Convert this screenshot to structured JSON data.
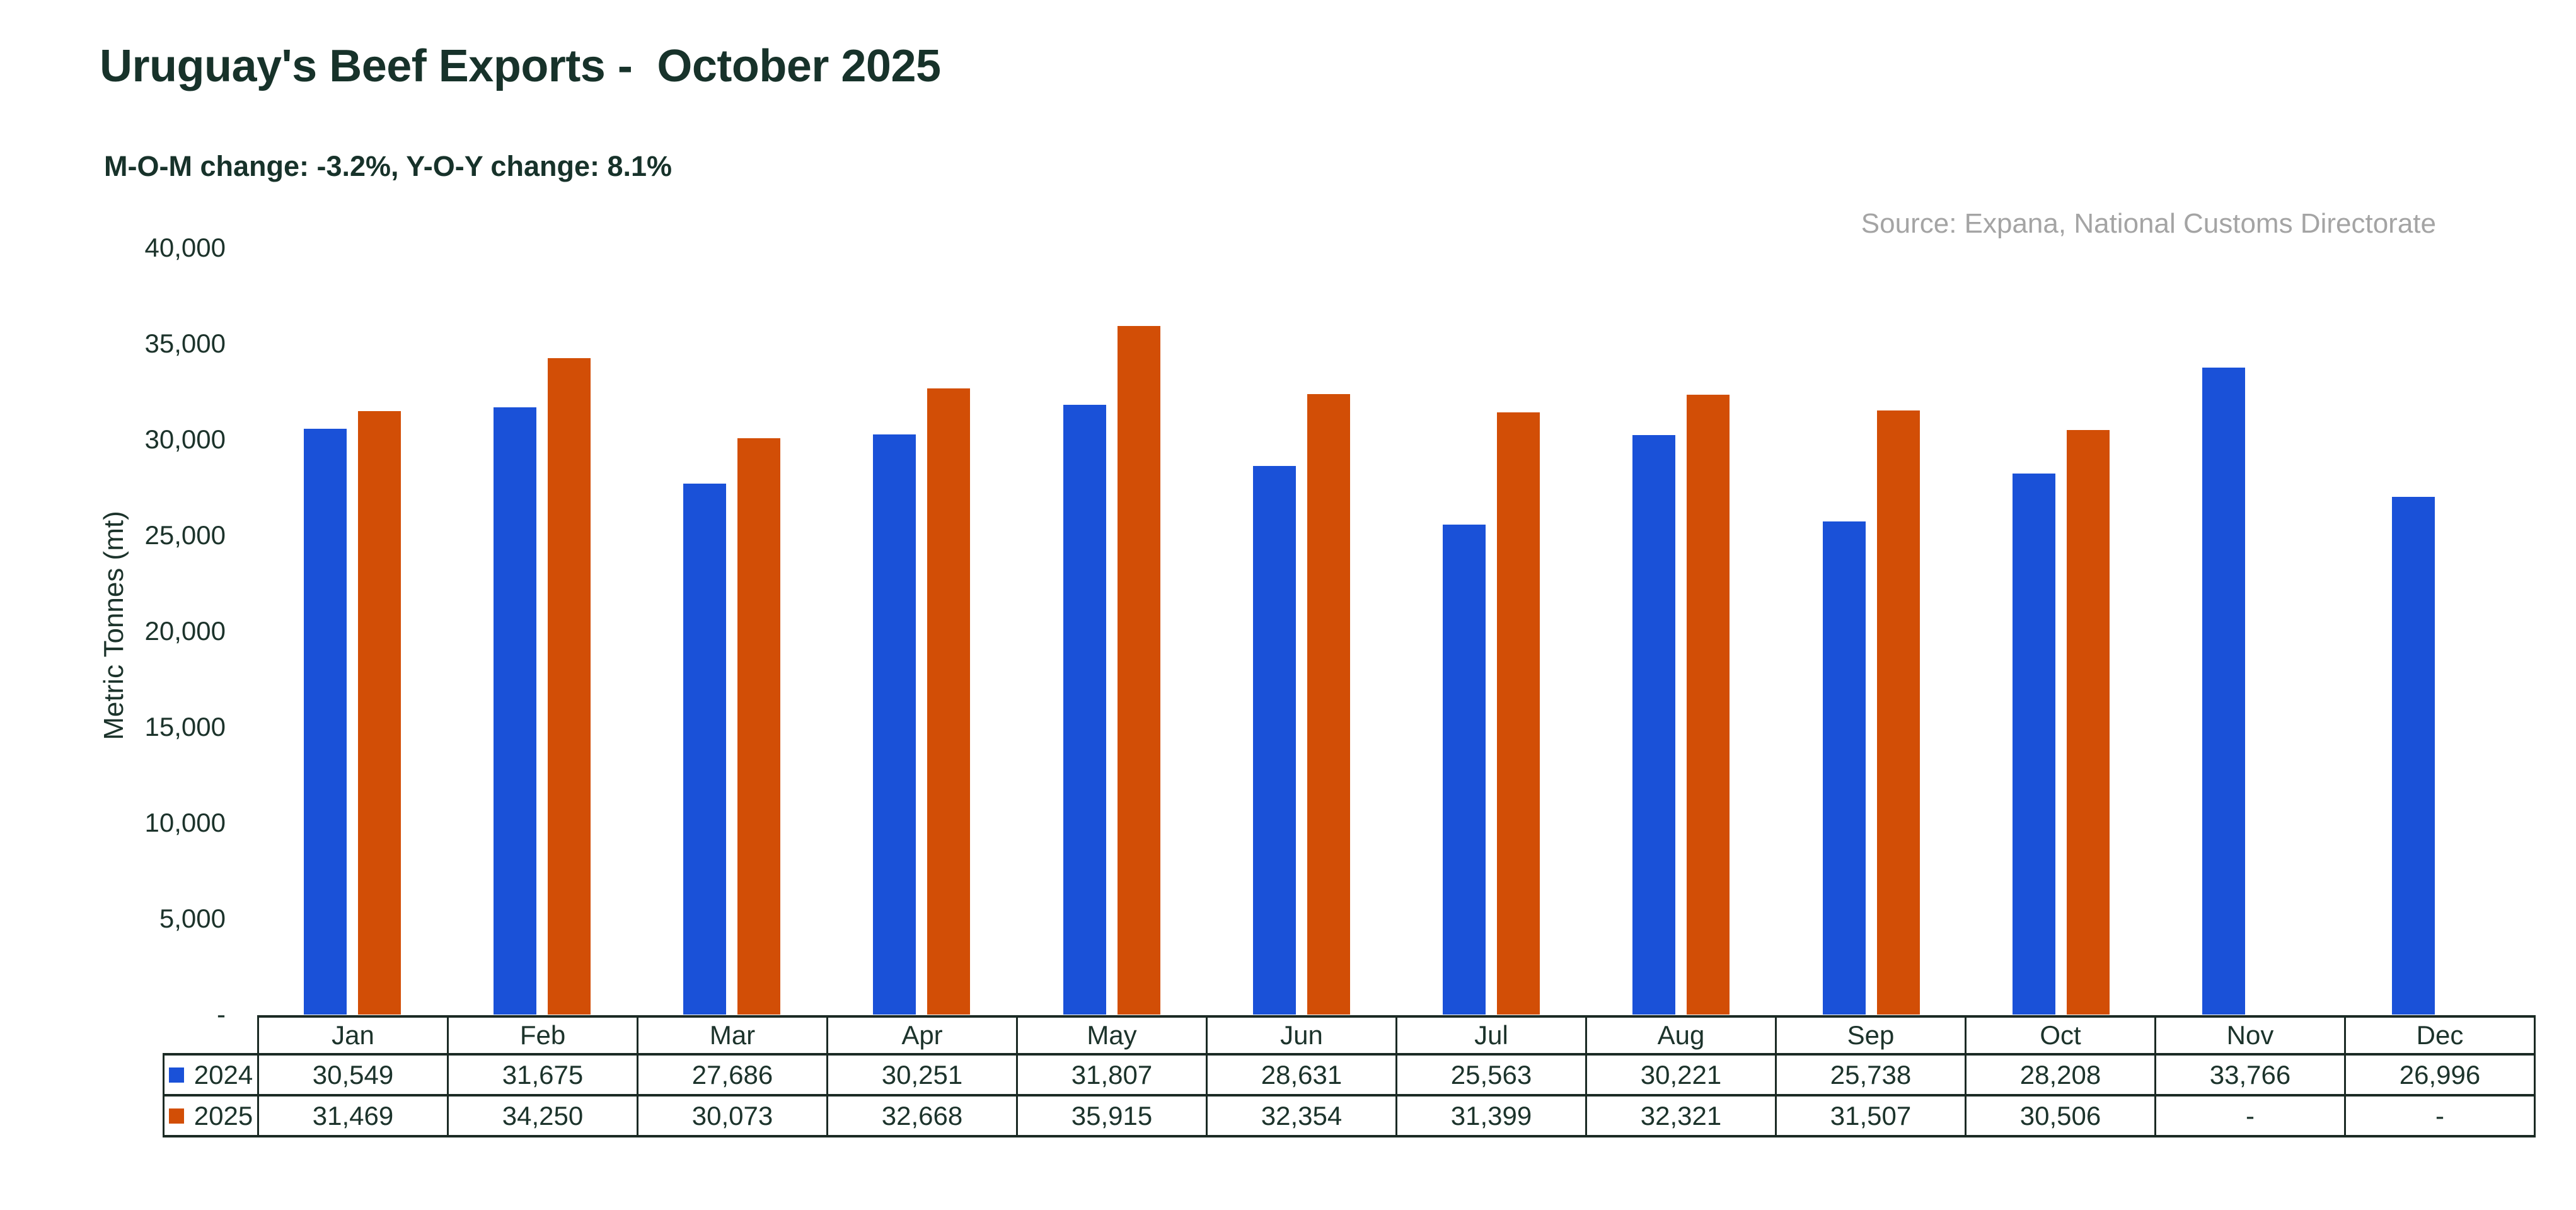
{
  "page": {
    "title": "Uruguay's Beef Exports -  October 2025",
    "subtitle": "M-O-M change: -3.2%, Y-O-Y change: 8.1%",
    "source_note": "Source: Expana, National Customs Directorate"
  },
  "colors": {
    "series_2024": "#1a51d8",
    "series_2025": "#d24e06",
    "ink": "#1c332b",
    "title_ink": "#17322a",
    "line": "#1b2a24",
    "muted": "#a4a4a4",
    "background": "#ffffff"
  },
  "chart_data": {
    "type": "bar",
    "title": "Uruguay's Beef Exports -  October 2025",
    "subtitle": "M-O-M change: -3.2%, Y-O-Y change: 8.1%",
    "source": "Source: Expana, National Customs Directorate",
    "xlabel": "",
    "ylabel": "Metric Tonnes (mt)",
    "ylim": [
      0,
      40000
    ],
    "ytick_step": 5000,
    "grid": false,
    "legend_position": "table-left",
    "yticks": [
      {
        "value": 40000,
        "label": "40,000"
      },
      {
        "value": 35000,
        "label": "35,000"
      },
      {
        "value": 30000,
        "label": "30,000"
      },
      {
        "value": 25000,
        "label": "25,000"
      },
      {
        "value": 20000,
        "label": "20,000"
      },
      {
        "value": 15000,
        "label": "15,000"
      },
      {
        "value": 10000,
        "label": "10,000"
      },
      {
        "value": 5000,
        "label": "5,000"
      },
      {
        "value": 0,
        "label": "-"
      }
    ],
    "categories": [
      "Jan",
      "Feb",
      "Mar",
      "Apr",
      "May",
      "Jun",
      "Jul",
      "Aug",
      "Sep",
      "Oct",
      "Nov",
      "Dec"
    ],
    "series": [
      {
        "name": "2024",
        "color": "#1a51d8",
        "values": [
          30549,
          31675,
          27686,
          30251,
          31807,
          28631,
          25563,
          30221,
          25738,
          28208,
          33766,
          26996
        ],
        "labels": [
          "30,549",
          "31,675",
          "27,686",
          "30,251",
          "31,807",
          "28,631",
          "25,563",
          "30,221",
          "25,738",
          "28,208",
          "33,766",
          "26,996"
        ]
      },
      {
        "name": "2025",
        "color": "#d24e06",
        "values": [
          31469,
          34250,
          30073,
          32668,
          35915,
          32354,
          31399,
          32321,
          31507,
          30506,
          null,
          null
        ],
        "labels": [
          "31,469",
          "34,250",
          "30,073",
          "32,668",
          "35,915",
          "32,354",
          "31,399",
          "32,321",
          "31,507",
          "30,506",
          "-",
          "-"
        ]
      }
    ]
  }
}
